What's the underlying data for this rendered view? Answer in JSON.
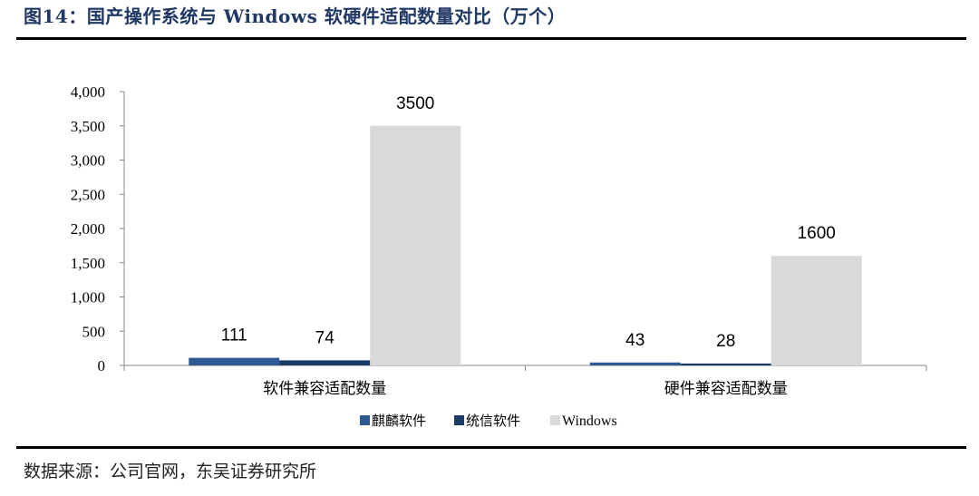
{
  "header": {
    "title": "图14：国产操作系统与 Windows 软硬件适配数量对比（万个）"
  },
  "footer": {
    "source": "数据来源：公司官网，东吴证券研究所"
  },
  "chart_data": {
    "type": "bar",
    "title": "",
    "xlabel": "",
    "ylabel": "",
    "categories": [
      "软件兼容适配数量",
      "硬件兼容适配数量"
    ],
    "series": [
      {
        "name": "麒麟软件",
        "values": [
          111,
          43
        ],
        "labels": [
          "111",
          "43"
        ],
        "color": "#2e5a94"
      },
      {
        "name": "统信软件",
        "values": [
          74,
          28
        ],
        "labels": [
          "74",
          "28"
        ],
        "color": "#1b3a66"
      },
      {
        "name": "Windows",
        "values": [
          3500,
          1600
        ],
        "labels": [
          "3500",
          "1600"
        ],
        "color": "#d9d9d9"
      }
    ],
    "ylim": [
      0,
      4000
    ],
    "yticks": [
      0,
      500,
      1000,
      1500,
      2000,
      2500,
      3000,
      3500,
      4000
    ],
    "ytick_labels": [
      "0",
      "500",
      "1,000",
      "1,500",
      "2,000",
      "2,500",
      "3,000",
      "3,500",
      "4,000"
    ],
    "grid": false,
    "legend_position": "bottom"
  }
}
